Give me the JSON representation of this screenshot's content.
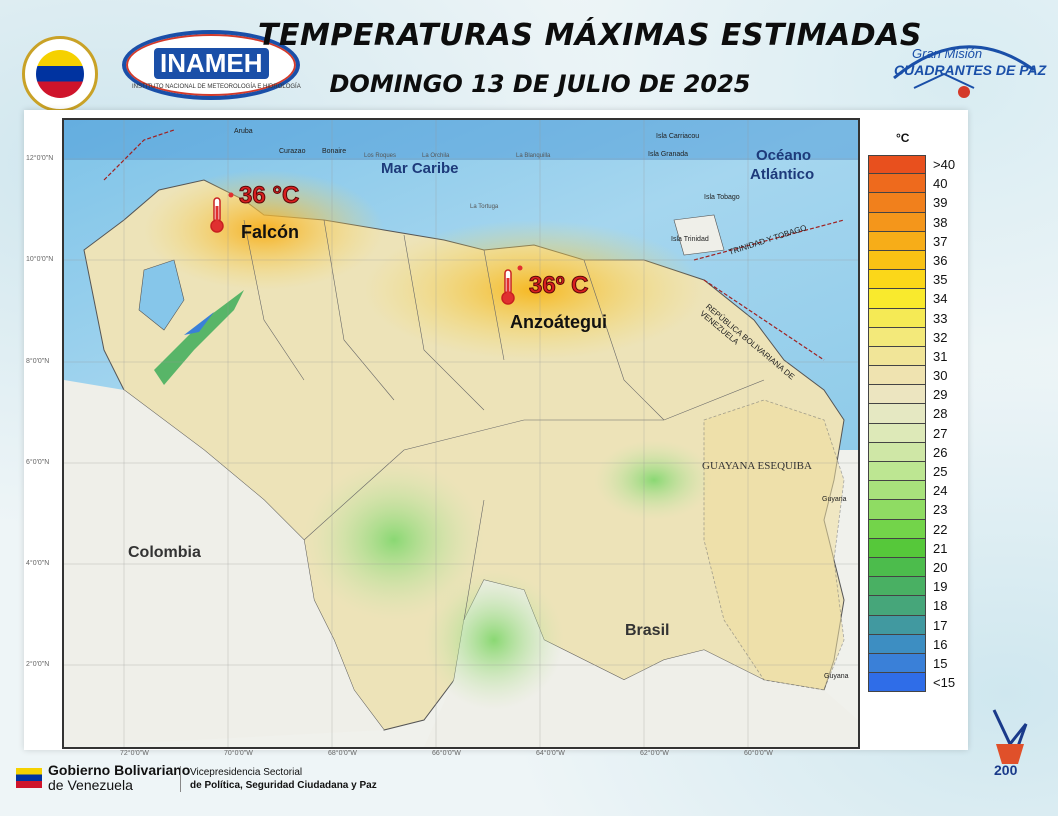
{
  "header": {
    "title": "TEMPERATURAS MÁXIMAS ESTIMADAS",
    "date": "DOMINGO 13 DE JULIO DE 2025",
    "inameh_logo_text": "INAMEH",
    "inameh_subtitle": "INSTITUTO NACIONAL DE METEOROLOGÍA E HIDROLOGÍA",
    "mision_top": "Gran Misión",
    "mision_main": "CUADRANTES DE PAZ"
  },
  "map": {
    "sea_labels": {
      "caribe": "Mar Caribe",
      "oceano": "Océano",
      "atlantico": "Atlántico"
    },
    "country_labels": {
      "colombia": "Colombia",
      "brasil": "Brasil",
      "guayana": "GUAYANA ESEQUIBA",
      "trinidad": "TRINIDAD Y TOBAGO",
      "border": "REPÚBLICA BOLIVARIANA DE VENEZUELA"
    },
    "islands": [
      "Aruba",
      "Curazao",
      "Bonaire",
      "Los Roques",
      "La Orchila",
      "La Blanquilla",
      "La Tortuga",
      "Isla Carriacou",
      "Isla Granada",
      "Isla Tobago",
      "Isla Trinidad",
      "Guyana",
      "Guyana"
    ],
    "latitudes": [
      "12°0'0\"N",
      "10°0'0\"N",
      "8°0'0\"N",
      "6°0'0\"N",
      "4°0'0\"N",
      "2°0'0\"N"
    ],
    "longitudes": [
      "72°0'0\"W",
      "70°0'0\"W",
      "68°0'0\"W",
      "66°0'0\"W",
      "64°0'0\"W",
      "62°0'0\"W",
      "60°0'0\"W"
    ],
    "annotations": [
      {
        "value": "36 °C",
        "place": "Falcón"
      },
      {
        "value": "36º C",
        "place": "Anzoátegui"
      }
    ]
  },
  "legend": {
    "unit": "°C",
    "items": [
      {
        "label": ">40",
        "color": "#e8501e"
      },
      {
        "label": "40",
        "color": "#ee6a1d"
      },
      {
        "label": "39",
        "color": "#f1801c"
      },
      {
        "label": "38",
        "color": "#f4961b"
      },
      {
        "label": "37",
        "color": "#f7ad18"
      },
      {
        "label": "36",
        "color": "#f9c214"
      },
      {
        "label": "35",
        "color": "#fbd719"
      },
      {
        "label": "34",
        "color": "#f9ea2d"
      },
      {
        "label": "33",
        "color": "#f5ea55"
      },
      {
        "label": "32",
        "color": "#f3e97a"
      },
      {
        "label": "31",
        "color": "#f1e598"
      },
      {
        "label": "30",
        "color": "#efe3b0"
      },
      {
        "label": "29",
        "color": "#ece5c0"
      },
      {
        "label": "28",
        "color": "#e5e8c2"
      },
      {
        "label": "27",
        "color": "#dde9b8"
      },
      {
        "label": "26",
        "color": "#cfe7a6"
      },
      {
        "label": "25",
        "color": "#bde692"
      },
      {
        "label": "24",
        "color": "#a8e27c"
      },
      {
        "label": "23",
        "color": "#8fdc63"
      },
      {
        "label": "22",
        "color": "#73d44a"
      },
      {
        "label": "21",
        "color": "#56c83a"
      },
      {
        "label": "20",
        "color": "#4cbc4c"
      },
      {
        "label": "19",
        "color": "#49b063"
      },
      {
        "label": "18",
        "color": "#46a67a"
      },
      {
        "label": "17",
        "color": "#4199a0"
      },
      {
        "label": "16",
        "color": "#3d8ec2"
      },
      {
        "label": "15",
        "color": "#3a80d8"
      },
      {
        "label": "<15",
        "color": "#2f6de8"
      }
    ]
  },
  "footer": {
    "gob_line1": "Gobierno Bolivariano",
    "gob_line2": "de Venezuela",
    "vice_line1": "Vicepresidencia Sectorial",
    "vice_line2": "de Política, Seguridad Ciudadana y Paz",
    "bicentenary": "200"
  }
}
